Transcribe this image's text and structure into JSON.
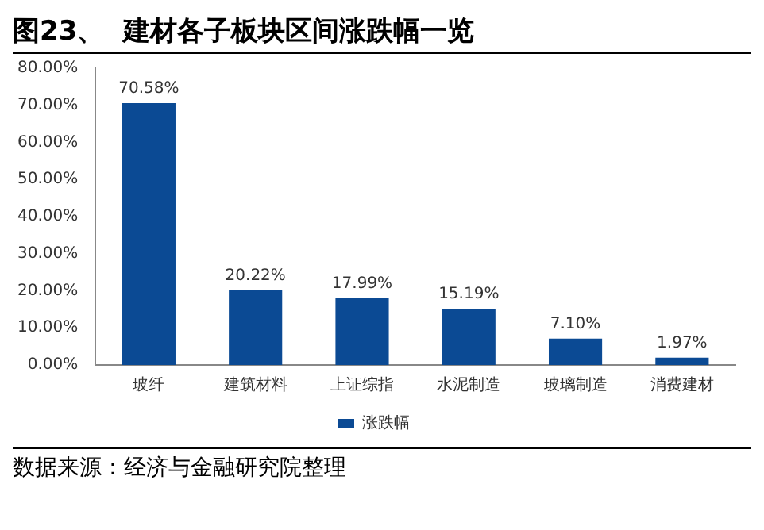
{
  "chart_data": {
    "type": "bar",
    "title": "图23、  建材各子板块区间涨跌幅一览",
    "categories": [
      "玻纤",
      "建筑材料",
      "上证综指",
      "水泥制造",
      "玻璃制造",
      "消费建材"
    ],
    "series": [
      {
        "name": "涨跌幅",
        "color": "#0b4a94",
        "values": [
          70.58,
          20.22,
          17.99,
          15.19,
          7.1,
          1.97
        ],
        "value_labels": [
          "70.58%",
          "20.22%",
          "17.99%",
          "15.19%",
          "7.10%",
          "1.97%"
        ]
      }
    ],
    "ylim": [
      0,
      80
    ],
    "yticks": [
      {
        "value": 0,
        "label": "0.00%"
      },
      {
        "value": 10,
        "label": "10.00%"
      },
      {
        "value": 20,
        "label": "20.00%"
      },
      {
        "value": 30,
        "label": "30.00%"
      },
      {
        "value": 40,
        "label": "40.00%"
      },
      {
        "value": 50,
        "label": "50.00%"
      },
      {
        "value": 60,
        "label": "60.00%"
      },
      {
        "value": 70,
        "label": "70.00%"
      },
      {
        "value": 80,
        "label": "80.00%"
      }
    ],
    "grid": false,
    "legend": "bottom",
    "annotations": [
      "数据来源：经济与金融研究院整理"
    ]
  }
}
